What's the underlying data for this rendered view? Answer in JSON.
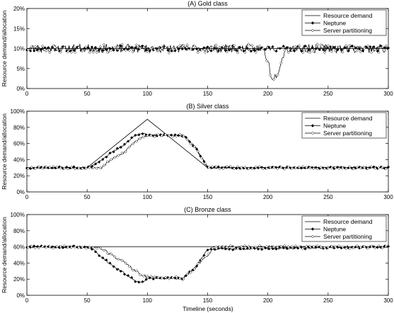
{
  "figure": {
    "xlabel": "Timeline (seconds)"
  },
  "chart_data": [
    {
      "type": "line",
      "title": "(A) Gold class",
      "xlabel": "",
      "ylabel": "Resource demand/allocation",
      "xlim": [
        0,
        300
      ],
      "ylim": [
        0,
        20
      ],
      "x_ticks": [
        "0",
        "50",
        "100",
        "150",
        "200",
        "250",
        "300"
      ],
      "y_ticks": [
        "0%",
        "5%",
        "10%",
        "15%",
        "20%"
      ],
      "legend_position": "top-right",
      "series": [
        {
          "name": "Resource demand",
          "marker": "none",
          "color": "#000000",
          "x": [
            0,
            300
          ],
          "y": [
            10,
            10
          ]
        },
        {
          "name": "Neptune",
          "marker": "filled-diamond",
          "color": "#000000",
          "noise": 0.7,
          "seed": 11,
          "x": [
            0,
            300
          ],
          "y": [
            10,
            10
          ]
        },
        {
          "name": "Server partitioning",
          "marker": "open-diamond",
          "color": "#000000",
          "noise": 1.1,
          "seed": 23,
          "x": [
            0,
            196,
            200,
            203,
            206,
            209,
            212,
            215,
            300
          ],
          "y": [
            10,
            10,
            7,
            3,
            3,
            5,
            8,
            10,
            10
          ]
        }
      ]
    },
    {
      "type": "line",
      "title": "(B) Silver class",
      "xlabel": "",
      "ylabel": "Resource demand/allocation",
      "xlim": [
        0,
        300
      ],
      "ylim": [
        0,
        100
      ],
      "x_ticks": [
        "0",
        "50",
        "100",
        "150",
        "200",
        "250",
        "300"
      ],
      "y_ticks": [
        "0%",
        "20%",
        "40%",
        "60%",
        "80%",
        "100%"
      ],
      "legend_position": "top-right",
      "series": [
        {
          "name": "Resource demand",
          "marker": "none",
          "color": "#000000",
          "x": [
            0,
            50,
            100,
            150,
            300
          ],
          "y": [
            30,
            30,
            90,
            30,
            30
          ]
        },
        {
          "name": "Neptune",
          "marker": "filled-diamond",
          "color": "#000000",
          "noise": 1.2,
          "seed": 37,
          "x": [
            0,
            52,
            60,
            70,
            80,
            90,
            95,
            100,
            130,
            140,
            150,
            300
          ],
          "y": [
            30,
            30,
            38,
            48,
            58,
            70,
            73,
            70,
            70,
            55,
            30,
            30
          ]
        },
        {
          "name": "Server partitioning",
          "marker": "open-diamond",
          "color": "#000000",
          "noise": 1.5,
          "seed": 53,
          "x": [
            0,
            55,
            62,
            70,
            80,
            88,
            95,
            100,
            130,
            140,
            150,
            300
          ],
          "y": [
            30,
            30,
            30,
            40,
            48,
            60,
            68,
            70,
            70,
            55,
            30,
            30
          ]
        }
      ]
    },
    {
      "type": "line",
      "title": "(C) Bronze class",
      "xlabel": "",
      "ylabel": "Resource demand/allocation",
      "xlim": [
        0,
        300
      ],
      "ylim": [
        0,
        100
      ],
      "x_ticks": [
        "0",
        "50",
        "100",
        "150",
        "200",
        "250",
        "300"
      ],
      "y_ticks": [
        "0%",
        "20%",
        "40%",
        "60%",
        "80%",
        "100%"
      ],
      "legend_position": "top-right",
      "series": [
        {
          "name": "Resource demand",
          "marker": "none",
          "color": "#000000",
          "x": [
            0,
            300
          ],
          "y": [
            60,
            60
          ]
        },
        {
          "name": "Neptune",
          "marker": "filled-diamond",
          "color": "#000000",
          "noise": 1.2,
          "seed": 71,
          "x": [
            0,
            52,
            60,
            70,
            80,
            90,
            97,
            100,
            130,
            140,
            150,
            300
          ],
          "y": [
            60,
            60,
            50,
            38,
            28,
            18,
            16,
            21,
            21,
            35,
            57,
            60
          ]
        },
        {
          "name": "Server partitioning",
          "marker": "open-diamond",
          "color": "#000000",
          "noise": 1.8,
          "seed": 89,
          "x": [
            0,
            55,
            62,
            70,
            80,
            90,
            100,
            130,
            140,
            150,
            155,
            300
          ],
          "y": [
            60,
            60,
            58,
            50,
            42,
            30,
            22,
            22,
            35,
            50,
            60,
            60
          ]
        }
      ]
    }
  ]
}
